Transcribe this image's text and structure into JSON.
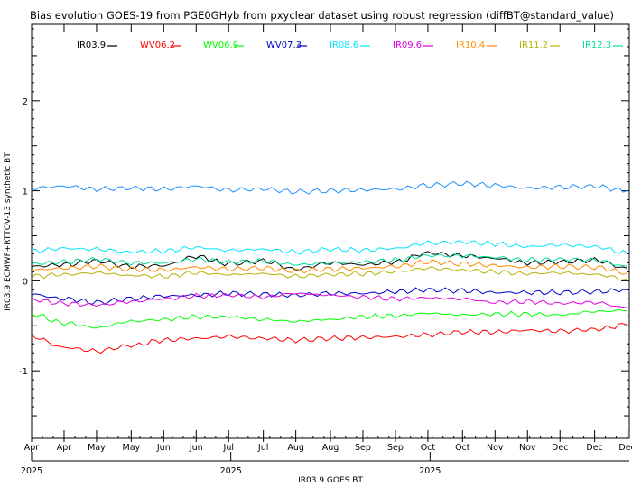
{
  "chart_data": {
    "type": "line",
    "title": "Bias evolution GOES-19 from PGE0GHyb from pxyclear dataset using robust regression (diffBT@standard_value)",
    "xlabel": "IR03.9 GOES BT",
    "ylabel": "IR03.9 ECMWF+RTTOV-13 synthetic BT",
    "ylim": [
      -1.75,
      2.85
    ],
    "yticks": [
      -1,
      0,
      1,
      2
    ],
    "ytick_labels": [
      "-1",
      "0",
      "1",
      "2"
    ],
    "xlim": [
      0,
      276
    ],
    "xticks": [
      {
        "day": 0,
        "label": "Apr"
      },
      {
        "day": 15,
        "label": "Apr"
      },
      {
        "day": 30,
        "label": "May"
      },
      {
        "day": 46,
        "label": "May"
      },
      {
        "day": 61,
        "label": "Jun"
      },
      {
        "day": 76,
        "label": "Jun"
      },
      {
        "day": 91,
        "label": "Jul"
      },
      {
        "day": 107,
        "label": "Jul"
      },
      {
        "day": 122,
        "label": "Aug"
      },
      {
        "day": 138,
        "label": "Aug"
      },
      {
        "day": 153,
        "label": "Sep"
      },
      {
        "day": 168,
        "label": "Sep"
      },
      {
        "day": 183,
        "label": "Oct"
      },
      {
        "day": 199,
        "label": "Oct"
      },
      {
        "day": 214,
        "label": "Nov"
      },
      {
        "day": 229,
        "label": "Nov"
      },
      {
        "day": 244,
        "label": "Dec"
      },
      {
        "day": 260,
        "label": "Dec"
      },
      {
        "day": 275,
        "label": "Dec"
      }
    ],
    "year_ticks": [
      {
        "day": 0,
        "label": "2025"
      },
      {
        "day": 92,
        "label": "2025"
      },
      {
        "day": 184,
        "label": "2025"
      }
    ],
    "grid": false,
    "legend_position": "top",
    "x": [
      0,
      15,
      30,
      46,
      61,
      76,
      91,
      107,
      122,
      138,
      153,
      168,
      183,
      199,
      214,
      229,
      244,
      260,
      275
    ],
    "series": [
      {
        "name": "IR03.9",
        "color": "#000000",
        "values": [
          0.16,
          0.18,
          0.22,
          0.16,
          0.17,
          0.27,
          0.19,
          0.22,
          0.13,
          0.2,
          0.18,
          0.21,
          0.31,
          0.28,
          0.25,
          0.2,
          0.21,
          0.23,
          0.14
        ]
      },
      {
        "name": "WV06.2",
        "color": "#ff0000",
        "values": [
          -0.62,
          -0.74,
          -0.78,
          -0.72,
          -0.66,
          -0.64,
          -0.62,
          -0.64,
          -0.66,
          -0.64,
          -0.63,
          -0.62,
          -0.6,
          -0.57,
          -0.57,
          -0.55,
          -0.56,
          -0.54,
          -0.49
        ]
      },
      {
        "name": "WV06.9",
        "color": "#00ff00",
        "values": [
          -0.37,
          -0.47,
          -0.52,
          -0.45,
          -0.43,
          -0.4,
          -0.4,
          -0.43,
          -0.45,
          -0.43,
          -0.4,
          -0.39,
          -0.36,
          -0.38,
          -0.37,
          -0.37,
          -0.38,
          -0.34,
          -0.33
        ]
      },
      {
        "name": "WV07.3",
        "color": "#0000cd",
        "values": [
          -0.15,
          -0.2,
          -0.24,
          -0.2,
          -0.17,
          -0.16,
          -0.14,
          -0.15,
          -0.16,
          -0.14,
          -0.14,
          -0.12,
          -0.1,
          -0.11,
          -0.13,
          -0.13,
          -0.13,
          -0.12,
          -0.1
        ]
      },
      {
        "name": "IR08.6",
        "color": "#00e5ff",
        "values": [
          0.33,
          0.36,
          0.35,
          0.32,
          0.33,
          0.37,
          0.34,
          0.35,
          0.32,
          0.35,
          0.34,
          0.36,
          0.42,
          0.43,
          0.41,
          0.38,
          0.4,
          0.38,
          0.31
        ]
      },
      {
        "name": "IR09.6",
        "color": "#e000e0",
        "values": [
          -0.21,
          -0.25,
          -0.27,
          -0.23,
          -0.2,
          -0.17,
          -0.16,
          -0.18,
          -0.14,
          -0.16,
          -0.18,
          -0.2,
          -0.19,
          -0.2,
          -0.24,
          -0.23,
          -0.25,
          -0.24,
          -0.3
        ]
      },
      {
        "name": "IR10.4",
        "color": "#ff8c00",
        "values": [
          0.12,
          0.14,
          0.16,
          0.13,
          0.12,
          0.15,
          0.13,
          0.14,
          0.11,
          0.13,
          0.14,
          0.16,
          0.21,
          0.19,
          0.17,
          0.15,
          0.16,
          0.15,
          0.09
        ]
      },
      {
        "name": "IR11.2",
        "color": "#b3b300",
        "values": [
          0.05,
          0.07,
          0.09,
          0.06,
          0.05,
          0.09,
          0.07,
          0.08,
          0.05,
          0.07,
          0.08,
          0.1,
          0.14,
          0.12,
          0.1,
          0.08,
          0.09,
          0.07,
          0.02
        ]
      },
      {
        "name": "IR12.3",
        "color": "#00e0a0",
        "values": [
          0.19,
          0.21,
          0.24,
          0.2,
          0.2,
          0.24,
          0.21,
          0.22,
          0.18,
          0.2,
          0.21,
          0.23,
          0.28,
          0.28,
          0.26,
          0.23,
          0.24,
          0.23,
          0.16
        ]
      },
      {
        "name": "",
        "color": "#1e90ff",
        "values": [
          1.03,
          1.05,
          1.02,
          1.03,
          1.02,
          1.05,
          1.01,
          1.02,
          0.99,
          1.0,
          1.01,
          1.02,
          1.06,
          1.08,
          1.06,
          1.03,
          1.04,
          1.05,
          1.0
        ]
      }
    ]
  }
}
